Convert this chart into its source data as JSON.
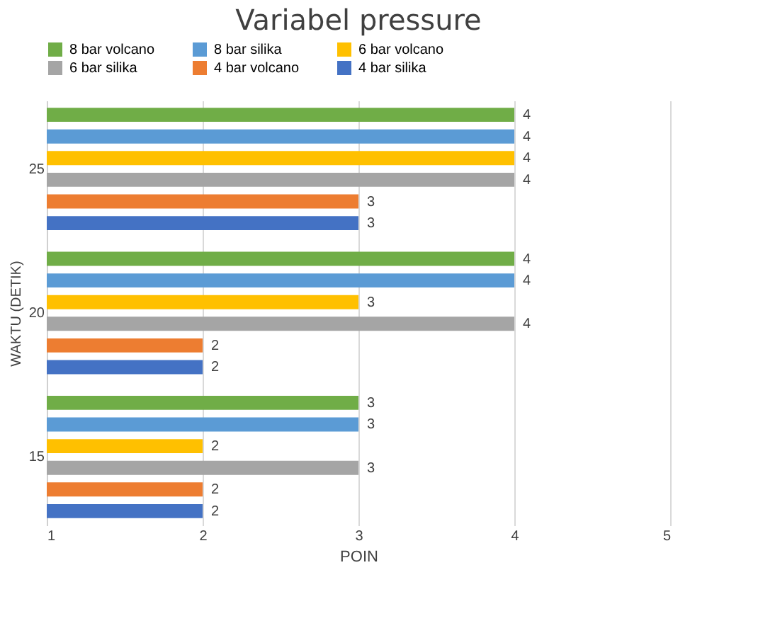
{
  "chart_data": {
    "type": "bar",
    "orientation": "horizontal",
    "title": "Variabel pressure",
    "xlabel": "POIN",
    "ylabel": "WAKTU (DETIK)",
    "categories": [
      "25",
      "20",
      "15"
    ],
    "series": [
      {
        "name": "8 bar volcano",
        "color": "#70ad47",
        "values": [
          4,
          4,
          3
        ]
      },
      {
        "name": "8 bar silika",
        "color": "#5b9bd5",
        "values": [
          4,
          4,
          3
        ]
      },
      {
        "name": "6 bar volcano",
        "color": "#ffc000",
        "values": [
          4,
          3,
          2
        ]
      },
      {
        "name": "6 bar silika",
        "color": "#a5a5a5",
        "values": [
          4,
          4,
          3
        ]
      },
      {
        "name": "4 bar volcano",
        "color": "#ed7d31",
        "values": [
          3,
          2,
          2
        ]
      },
      {
        "name": "4 bar silika",
        "color": "#4472c4",
        "values": [
          3,
          2,
          2
        ]
      }
    ],
    "xlim": [
      1,
      5
    ],
    "xticks": [
      1,
      2,
      3,
      4,
      5
    ],
    "grid": "x",
    "legend": "top",
    "data_labels": true
  }
}
